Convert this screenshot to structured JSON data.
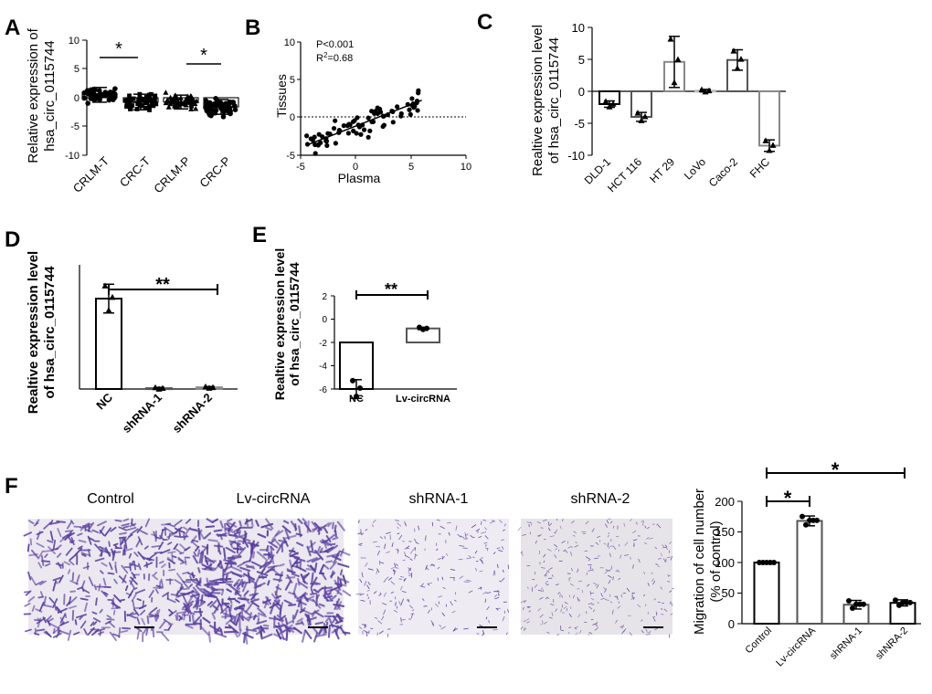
{
  "panels": {
    "A": {
      "letter": "A",
      "ylabel_lines": [
        "Relative expression of",
        "hsa_circ_0115744"
      ],
      "yticks": [
        "10",
        "5",
        "0",
        "-5",
        "-10"
      ],
      "categories": [
        "CRLM-T",
        "CRC-T",
        "CRLM-P",
        "CRC-P"
      ],
      "sig": [
        "*",
        "*"
      ]
    },
    "B": {
      "letter": "B",
      "stat_p": "P<0.001",
      "stat_r": "R",
      "stat_r_sup": "2",
      "stat_r_val": "=0.68",
      "ylabel": "Tissues",
      "xlabel": "Plasma",
      "yticks": [
        "10",
        "5",
        "0",
        "-5"
      ],
      "xticks": [
        "-5",
        "0",
        "5",
        "10"
      ]
    },
    "C": {
      "letter": "C",
      "ylabel_lines": [
        "Realtive expression level",
        "of hsa_circ_0115744"
      ],
      "yticks": [
        "10",
        "5",
        "0",
        "-5",
        "-10"
      ],
      "categories": [
        "DLD-1",
        "HCT 116",
        "HT 29",
        "LoVo",
        "Caco-2",
        "FHC"
      ]
    },
    "D": {
      "letter": "D",
      "ylabel_lines": [
        "Realtive expression level",
        "of hsa_circ_0115744"
      ],
      "categories": [
        "NC",
        "shRNA-1",
        "shRNA-2"
      ],
      "sig": "**"
    },
    "E": {
      "letter": "E",
      "ylabel_lines": [
        "Realtive expression level",
        "of hsa_circ_0115744"
      ],
      "yticks": [
        "2",
        "0",
        "-2",
        "-4",
        "-6"
      ],
      "categories": [
        "NC",
        "Lv-circRNA"
      ],
      "sig": "**"
    },
    "F": {
      "letter": "F",
      "image_titles": [
        "Control",
        "Lv-circRNA",
        "shRNA-1",
        "shRNA-2"
      ],
      "ylabel_lines": [
        "Migration of  cell number",
        "(% of control)"
      ],
      "yticks": [
        "200",
        "150",
        "100",
        "50",
        "0"
      ],
      "categories": [
        "Control",
        "Lv-circRNA",
        "shRNA-1",
        "shNRA-2"
      ],
      "sig": [
        "*",
        "*"
      ]
    }
  },
  "colors": {
    "black": "#000000",
    "dark_gray": "#555555",
    "mid_gray": "#888888",
    "light_gray": "#bbbbbb",
    "stain": "#5a3fa0",
    "micro_bg": "#ece8f0"
  },
  "chart_data": [
    {
      "panel": "A",
      "type": "scatter",
      "categories": [
        "CRLM-T",
        "CRC-T",
        "CRLM-P",
        "CRC-P"
      ],
      "means": [
        1.0,
        -1.5,
        -1.5,
        -3.2
      ],
      "ylim": [
        -10,
        10
      ],
      "ylabel": "Relative expression of hsa_circ_0115744"
    },
    {
      "panel": "B",
      "type": "scatter",
      "xlabel": "Plasma",
      "ylabel": "Tissues",
      "xlim": [
        -5,
        10
      ],
      "ylim": [
        -5,
        10
      ],
      "fit_line": [
        [
          -4.5,
          -3.8
        ],
        [
          6,
          2.2
        ]
      ],
      "annotations": [
        "P<0.001",
        "R2=0.68"
      ]
    },
    {
      "panel": "C",
      "type": "bar",
      "categories": [
        "DLD-1",
        "HCT 116",
        "HT 29",
        "LoVo",
        "Caco-2",
        "FHC"
      ],
      "values": [
        -2.0,
        -4.0,
        4.6,
        0.1,
        4.9,
        -8.5
      ],
      "errors": [
        0.5,
        0.7,
        4.0,
        0.2,
        1.6,
        0.9
      ],
      "ylim": [
        -10,
        10
      ]
    },
    {
      "panel": "D",
      "type": "bar",
      "categories": [
        "NC",
        "shRNA-1",
        "shRNA-2"
      ],
      "values": [
        2.2,
        0.02,
        0.04
      ],
      "errors": [
        0.35,
        0.02,
        0.02
      ]
    },
    {
      "panel": "E",
      "type": "bar",
      "categories": [
        "NC",
        "Lv-circRNA"
      ],
      "values": [
        -4.0,
        1.2
      ],
      "errors": [
        0.8,
        0.1
      ],
      "ylim": [
        -6,
        2
      ]
    },
    {
      "panel": "F",
      "type": "bar",
      "categories": [
        "Control",
        "Lv-circRNA",
        "shRNA-1",
        "shNRA-2"
      ],
      "values": [
        100,
        168,
        31,
        34
      ],
      "errors": [
        0,
        8,
        7,
        5
      ],
      "ylim": [
        0,
        200
      ],
      "ylabel": "Migration of cell number (% of control)"
    }
  ]
}
